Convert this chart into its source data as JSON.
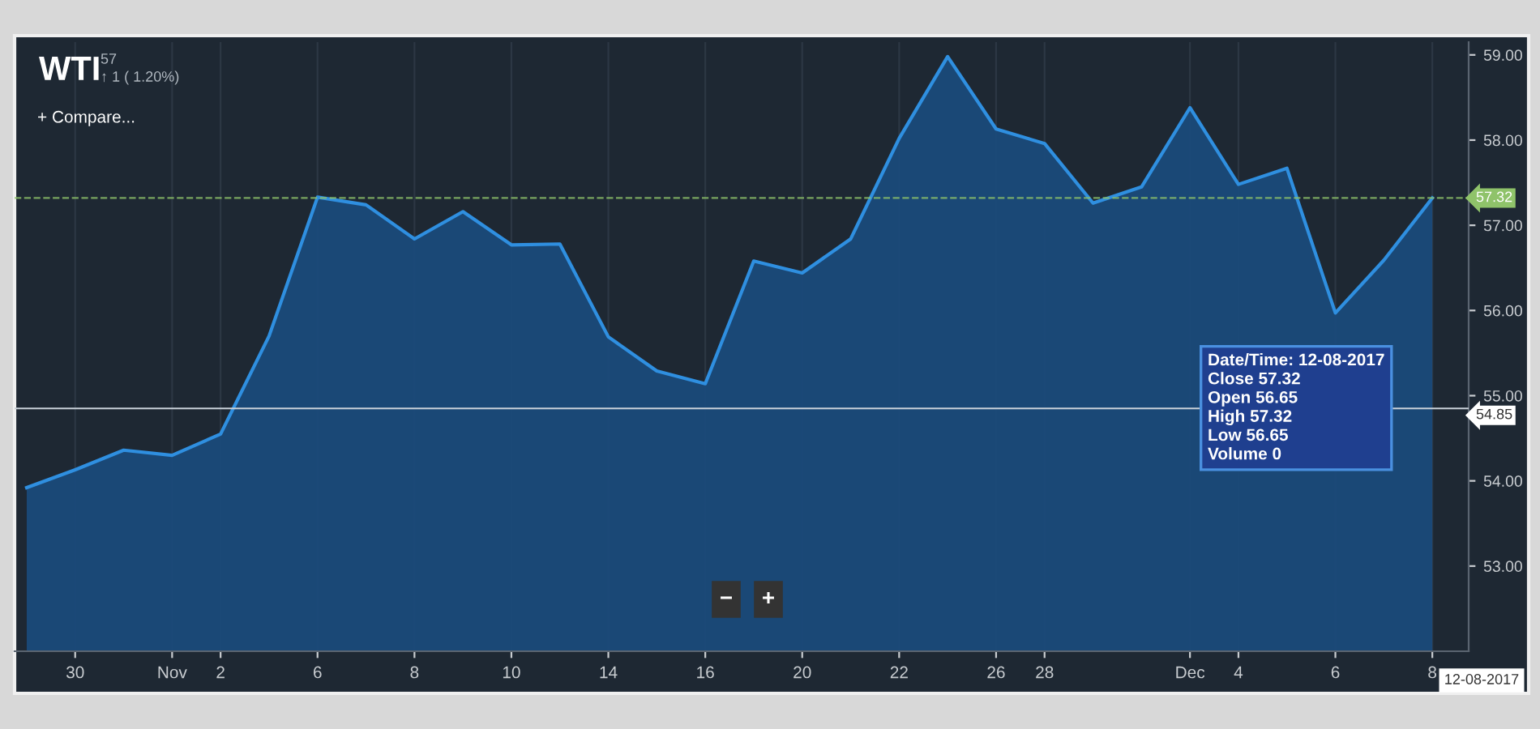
{
  "chart_data": {
    "type": "area",
    "title": "WTI",
    "subtitle": "57",
    "categories": [
      null,
      "30",
      null,
      "Nov",
      "2",
      null,
      "6",
      null,
      "8",
      null,
      "10",
      null,
      "14",
      null,
      "16",
      null,
      "20",
      null,
      "22",
      null,
      "26",
      "28",
      null,
      null,
      "Dec",
      "4",
      null,
      "6",
      null,
      "8"
    ],
    "series": [
      {
        "color": "#2f8fe0",
        "values": [
          53.92,
          54.13,
          54.36,
          54.3,
          54.55,
          55.7,
          57.33,
          57.24,
          56.84,
          57.16,
          56.77,
          56.78,
          55.69,
          55.29,
          55.14,
          56.58,
          56.44,
          56.84,
          58.02,
          58.98,
          58.13,
          57.96,
          57.26,
          57.45,
          58.38,
          57.48,
          57.67,
          55.97,
          56.59,
          57.32
        ]
      }
    ],
    "ylim": [
      52.0,
      59.15
    ],
    "yticks": [
      {
        "value": 53,
        "label": "53.00"
      },
      {
        "value": 54,
        "label": "54.00"
      },
      {
        "value": 55,
        "label": "55.00"
      },
      {
        "value": 56,
        "label": "56.00"
      },
      {
        "value": 57,
        "label": "57.00"
      },
      {
        "value": 58,
        "label": "58.00"
      },
      {
        "value": 59,
        "label": "59.00"
      }
    ],
    "grid": "x",
    "marker": "none",
    "line_style": "solid",
    "ref_lines": [
      {
        "axis": "y",
        "value": 57.32,
        "label": "57.32",
        "color": "#8fc36a",
        "line_style": "dashed"
      },
      {
        "axis": "y",
        "value": 54.85,
        "label": "54.85",
        "color": "#c8d0d8",
        "line_style": "solid"
      }
    ],
    "annotations": [
      "↑ 1 ( 1.20%)",
      "+ Compare...",
      "−",
      "+",
      "12-08-2017",
      "Date/Time: 12-08-2017\nClose 57.32\nOpen 56.65\nHigh 57.32\nLow 56.65\nVolume 0"
    ]
  }
}
